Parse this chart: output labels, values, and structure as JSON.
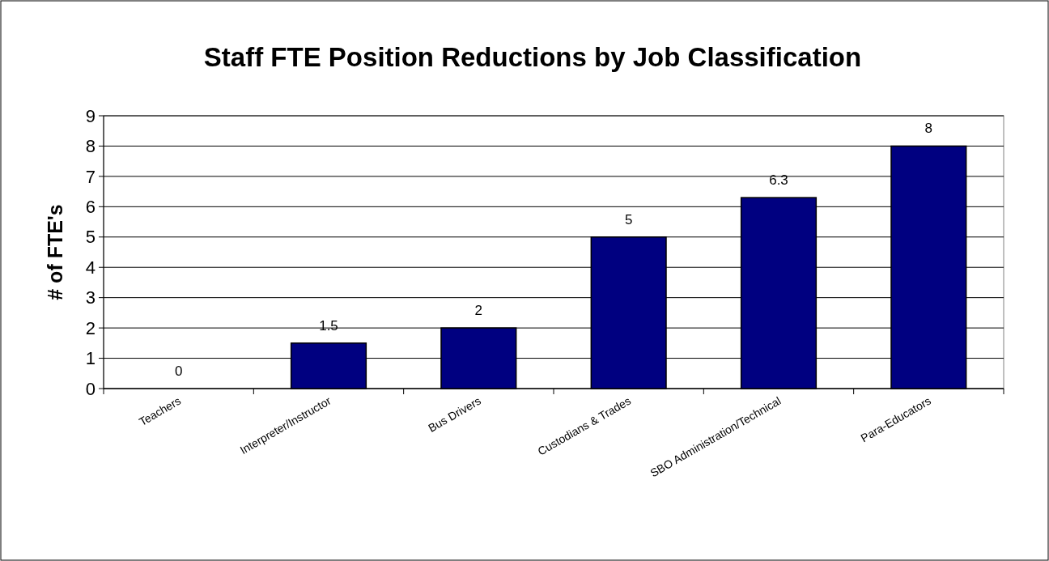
{
  "chart_data": {
    "type": "bar",
    "title": "Staff FTE Position Reductions by Job Classification",
    "ylabel": "# of FTE's",
    "categories": [
      "Teachers",
      "Interpreter/Instructor",
      "Bus Drivers",
      "Custodians & Trades",
      "SBO Administration/Technical",
      "Para-Educators"
    ],
    "values": [
      0,
      1.5,
      2,
      5,
      6.3,
      8
    ],
    "color": "#000080",
    "ylim": [
      0,
      9
    ],
    "yticks": [
      0,
      1,
      2,
      3,
      4,
      5,
      6,
      7,
      8,
      9
    ],
    "grid": "y",
    "data_labels": true
  }
}
